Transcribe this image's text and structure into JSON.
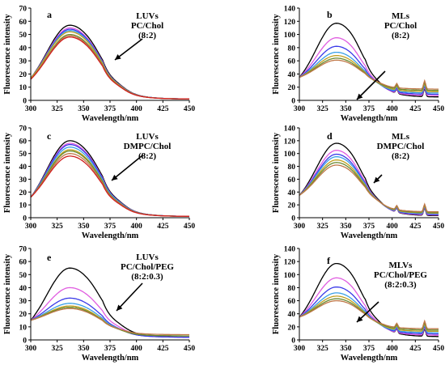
{
  "figure": {
    "axis_colors": {
      "axis": "#000000"
    },
    "series_colors": [
      "#000000",
      "#e05ce0",
      "#3a3ae8",
      "#3aa0e8",
      "#c0a020",
      "#6a8a30",
      "#c07848",
      "#d02020"
    ]
  },
  "chart_data": [
    {
      "panel": "a",
      "type": "line",
      "annotation": [
        "LUVs",
        "PC/Chol",
        "(8:2)"
      ],
      "xlabel": "Wavelength/nm",
      "ylabel": "Fluorescence intensity",
      "xlim": [
        300,
        450
      ],
      "ylim": [
        0,
        70
      ],
      "xticks": [
        300,
        325,
        350,
        375,
        400,
        425,
        450
      ],
      "yticks": [
        0,
        10,
        20,
        30,
        40,
        50,
        60,
        70
      ],
      "peak_x": 337,
      "series": [
        {
          "peak": 57,
          "start": 17,
          "shoulder": 17,
          "tail": 1
        },
        {
          "peak": 55,
          "start": 17,
          "shoulder": 16,
          "tail": 1
        },
        {
          "peak": 54,
          "start": 17,
          "shoulder": 16,
          "tail": 1
        },
        {
          "peak": 53,
          "start": 17,
          "shoulder": 16,
          "tail": 1
        },
        {
          "peak": 52,
          "start": 17,
          "shoulder": 16,
          "tail": 1
        },
        {
          "peak": 50,
          "start": 16,
          "shoulder": 15,
          "tail": 1
        },
        {
          "peak": 49,
          "start": 16,
          "shoulder": 15,
          "tail": 1
        },
        {
          "peak": 48,
          "start": 16,
          "shoulder": 15,
          "tail": 1
        }
      ]
    },
    {
      "panel": "b",
      "type": "line",
      "annotation": [
        "MLs",
        "PC/Chol",
        "(8:2)"
      ],
      "xlabel": "Wavelength/nm",
      "ylabel": "Fluorescence intensity",
      "xlim": [
        300,
        450
      ],
      "ylim": [
        0,
        140
      ],
      "xticks": [
        300,
        325,
        350,
        375,
        400,
        425,
        450
      ],
      "yticks": [
        0,
        20,
        40,
        60,
        80,
        100,
        120,
        140
      ],
      "peak_x": 340,
      "raman": [
        405,
        435
      ],
      "series": [
        {
          "peak": 117,
          "start": 35,
          "shoulder": 35,
          "tail": 5,
          "r1": 8,
          "r2": 14
        },
        {
          "peak": 95,
          "start": 35,
          "shoulder": 35,
          "tail": 7,
          "r1": 8,
          "r2": 14
        },
        {
          "peak": 82,
          "start": 35,
          "shoulder": 35,
          "tail": 9,
          "r1": 8,
          "r2": 14
        },
        {
          "peak": 73,
          "start": 35,
          "shoulder": 35,
          "tail": 11,
          "r1": 8,
          "r2": 14
        },
        {
          "peak": 68,
          "start": 35,
          "shoulder": 35,
          "tail": 13,
          "r1": 8,
          "r2": 14
        },
        {
          "peak": 64,
          "start": 35,
          "shoulder": 35,
          "tail": 15,
          "r1": 8,
          "r2": 14
        },
        {
          "peak": 61,
          "start": 35,
          "shoulder": 35,
          "tail": 17,
          "r1": 8,
          "r2": 14
        }
      ]
    },
    {
      "panel": "c",
      "type": "line",
      "annotation": [
        "LUVs",
        "DMPC/Chol",
        "(8:2)"
      ],
      "xlabel": "Wavelength/nm",
      "ylabel": "Fluorescence intensity",
      "xlim": [
        300,
        450
      ],
      "ylim": [
        0,
        70
      ],
      "xticks": [
        300,
        325,
        350,
        375,
        400,
        425,
        450
      ],
      "yticks": [
        0,
        10,
        20,
        30,
        40,
        50,
        60,
        70
      ],
      "peak_x": 337,
      "series": [
        {
          "peak": 60,
          "start": 16,
          "shoulder": 18,
          "tail": 1
        },
        {
          "peak": 58,
          "start": 16,
          "shoulder": 17,
          "tail": 1
        },
        {
          "peak": 57,
          "start": 16,
          "shoulder": 17,
          "tail": 1
        },
        {
          "peak": 55,
          "start": 16,
          "shoulder": 17,
          "tail": 1
        },
        {
          "peak": 53,
          "start": 16,
          "shoulder": 16,
          "tail": 1
        },
        {
          "peak": 52,
          "start": 16,
          "shoulder": 16,
          "tail": 1
        },
        {
          "peak": 50,
          "start": 16,
          "shoulder": 16,
          "tail": 1
        },
        {
          "peak": 48,
          "start": 16,
          "shoulder": 15,
          "tail": 1
        }
      ]
    },
    {
      "panel": "d",
      "type": "line",
      "annotation": [
        "MLs",
        "DMPC/Chol",
        "(8:2)"
      ],
      "xlabel": "Wavelength/nm",
      "ylabel": "Fluorescence intensity",
      "xlim": [
        300,
        450
      ],
      "ylim": [
        0,
        140
      ],
      "xticks": [
        300,
        325,
        350,
        375,
        400,
        425,
        450
      ],
      "yticks": [
        0,
        20,
        40,
        60,
        80,
        100,
        120,
        140
      ],
      "peak_x": 340,
      "raman": [
        405,
        435
      ],
      "series": [
        {
          "peak": 116,
          "start": 35,
          "shoulder": 38,
          "tail": 3,
          "r1": 8,
          "r2": 13
        },
        {
          "peak": 105,
          "start": 35,
          "shoulder": 37,
          "tail": 4,
          "r1": 8,
          "r2": 13
        },
        {
          "peak": 99,
          "start": 35,
          "shoulder": 37,
          "tail": 5,
          "r1": 8,
          "r2": 13
        },
        {
          "peak": 95,
          "start": 35,
          "shoulder": 37,
          "tail": 6,
          "r1": 8,
          "r2": 13
        },
        {
          "peak": 90,
          "start": 35,
          "shoulder": 37,
          "tail": 7,
          "r1": 8,
          "r2": 13
        },
        {
          "peak": 86,
          "start": 35,
          "shoulder": 36,
          "tail": 8,
          "r1": 8,
          "r2": 13
        },
        {
          "peak": 82,
          "start": 35,
          "shoulder": 36,
          "tail": 9,
          "r1": 8,
          "r2": 13
        }
      ]
    },
    {
      "panel": "e",
      "type": "line",
      "annotation": [
        "LUVs",
        "PC/Chol/PEG",
        "(8:2:0.3)"
      ],
      "xlabel": "Wavelength/nm",
      "ylabel": "Fluorescence intensity",
      "xlim": [
        300,
        450
      ],
      "ylim": [
        0,
        70
      ],
      "xticks": [
        300,
        325,
        350,
        375,
        400,
        425,
        450
      ],
      "yticks": [
        0,
        10,
        20,
        30,
        40,
        50,
        60,
        70
      ],
      "peak_x": 337,
      "series": [
        {
          "peak": 55,
          "start": 15,
          "shoulder": 16,
          "tail": 2
        },
        {
          "peak": 40,
          "start": 15,
          "shoulder": 14,
          "tail": 2
        },
        {
          "peak": 32,
          "start": 15,
          "shoulder": 13,
          "tail": 2
        },
        {
          "peak": 28,
          "start": 15,
          "shoulder": 12,
          "tail": 3
        },
        {
          "peak": 26,
          "start": 15,
          "shoulder": 12,
          "tail": 3
        },
        {
          "peak": 25,
          "start": 15,
          "shoulder": 12,
          "tail": 3
        },
        {
          "peak": 24,
          "start": 15,
          "shoulder": 11,
          "tail": 4
        }
      ]
    },
    {
      "panel": "f",
      "type": "line",
      "annotation": [
        "MLVs",
        "PC/Chol/PEG",
        "(8:2:0.3)"
      ],
      "xlabel": "Wavelength/nm",
      "ylabel": "Fluorescence intensity",
      "xlim": [
        300,
        450
      ],
      "ylim": [
        0,
        140
      ],
      "xticks": [
        300,
        325,
        350,
        375,
        400,
        425,
        450
      ],
      "yticks": [
        0,
        20,
        40,
        60,
        80,
        100,
        120,
        140
      ],
      "peak_x": 340,
      "raman": [
        405,
        435
      ],
      "series": [
        {
          "peak": 117,
          "start": 35,
          "shoulder": 36,
          "tail": 5,
          "r1": 8,
          "r2": 13
        },
        {
          "peak": 95,
          "start": 35,
          "shoulder": 35,
          "tail": 7,
          "r1": 8,
          "r2": 13
        },
        {
          "peak": 81,
          "start": 35,
          "shoulder": 34,
          "tail": 9,
          "r1": 8,
          "r2": 13
        },
        {
          "peak": 72,
          "start": 35,
          "shoulder": 34,
          "tail": 11,
          "r1": 8,
          "r2": 13
        },
        {
          "peak": 67,
          "start": 35,
          "shoulder": 33,
          "tail": 13,
          "r1": 8,
          "r2": 13
        },
        {
          "peak": 63,
          "start": 35,
          "shoulder": 33,
          "tail": 15,
          "r1": 8,
          "r2": 13
        },
        {
          "peak": 60,
          "start": 35,
          "shoulder": 32,
          "tail": 17,
          "r1": 8,
          "r2": 13
        }
      ]
    }
  ]
}
